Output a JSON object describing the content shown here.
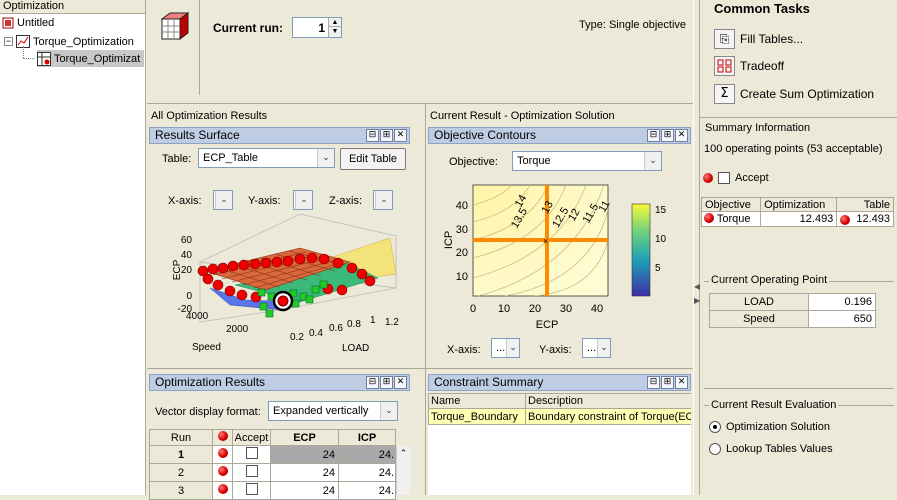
{
  "tree": {
    "header": "Optimization",
    "root": "Untitled",
    "child": "Torque_Optimization",
    "leaf": "Torque_Optimizat"
  },
  "toolbar": {
    "current_run_label": "Current run:",
    "current_run_value": "1",
    "type_text": "Type: Single objective"
  },
  "common_tasks": {
    "title": "Common Tasks",
    "items": [
      "Fill Tables...",
      "Tradeoff",
      "Create Sum Optimization"
    ]
  },
  "all_results_title": "All Optimization Results",
  "current_result_title": "Current Result - Optimization Solution",
  "results_surface": {
    "title": "Results Surface",
    "table_label": "Table:",
    "table_value": "ECP_Table",
    "edit_table": "Edit Table",
    "xaxis_label": "X-axis:",
    "yaxis_label": "Y-axis:",
    "zaxis_label": "Z-axis:",
    "plot": {
      "z_label": "ECP",
      "z_ticks": [
        "60",
        "40",
        "20",
        "0",
        "-20"
      ],
      "speed_label": "Speed",
      "speed_ticks": [
        "4000",
        "2000"
      ],
      "load_label": "LOAD",
      "load_ticks": [
        "0.2",
        "0.4",
        "0.6",
        "0.8",
        "1",
        "1.2"
      ]
    }
  },
  "objective_contours": {
    "title": "Objective Contours",
    "objective_label": "Objective:",
    "objective_value": "Torque",
    "xaxis_label": "X-axis:",
    "yaxis_label": "Y-axis:",
    "xaxis_value": "...",
    "yaxis_value": "...",
    "plot": {
      "xlabel": "ECP",
      "ylabel": "ICP",
      "x_ticks": [
        "0",
        "10",
        "20",
        "30",
        "40"
      ],
      "y_ticks": [
        "40",
        "30",
        "20",
        "10"
      ],
      "contour_labels": [
        "14",
        "13.5",
        "13",
        "12.5",
        "12",
        "11.5",
        "11"
      ],
      "colorbar_ticks": [
        "15",
        "10",
        "5"
      ]
    }
  },
  "optimization_results": {
    "title": "Optimization Results",
    "vector_label": "Vector display format:",
    "vector_value": "Expanded vertically",
    "columns": [
      "Run",
      "",
      "Accept",
      "ECP",
      "ICP"
    ],
    "rows": [
      {
        "run": "1",
        "ecp": "24",
        "icp": "24."
      },
      {
        "run": "2",
        "ecp": "24",
        "icp": "24."
      },
      {
        "run": "3",
        "ecp": "24",
        "icp": "24."
      }
    ]
  },
  "constraint_summary": {
    "title": "Constraint Summary",
    "columns": [
      "Name",
      "Description"
    ],
    "rows": [
      {
        "name": "Torque_Boundary",
        "description": "Boundary constraint of Torque(EC"
      }
    ]
  },
  "summary_info": {
    "title": "Summary Information",
    "points_text": "100 operating points (53 acceptable)",
    "accept_label": "Accept",
    "columns": [
      "Objective",
      "Optimization",
      "Table"
    ],
    "row": {
      "objective": "Torque",
      "optimization": "12.493",
      "table": "12.493"
    }
  },
  "operating_point": {
    "title": "Current Operating Point",
    "rows": [
      {
        "name": "LOAD",
        "value": "0.196"
      },
      {
        "name": "Speed",
        "value": "650"
      }
    ]
  },
  "evaluation": {
    "title": "Current Result Evaluation",
    "options": [
      "Optimization Solution",
      "Lookup Tables Values"
    ]
  }
}
